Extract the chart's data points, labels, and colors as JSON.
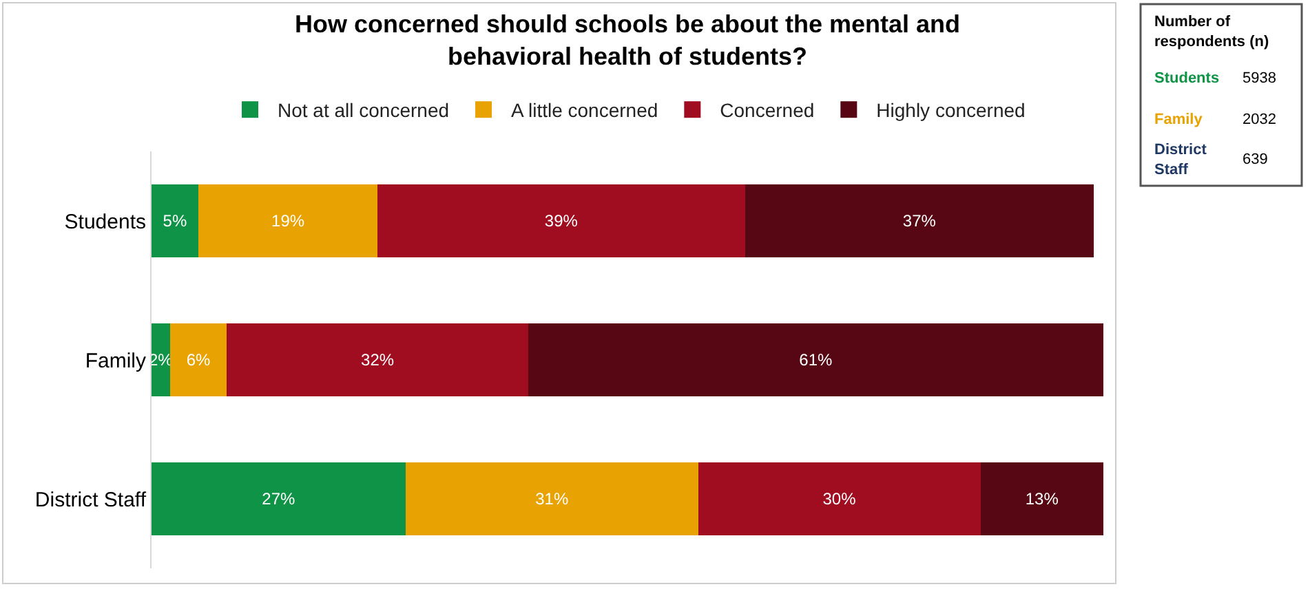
{
  "chart_data": [
    {
      "type": "bar",
      "orientation": "horizontal",
      "stacked": true,
      "title": "How concerned should schools be about the mental and\nbehavioral health of students?",
      "categories": [
        "Students",
        "Family",
        "District Staff"
      ],
      "legend": "top",
      "series": [
        {
          "name": "Not at all concerned",
          "color": "#0f9447",
          "values": [
            5,
            2,
            27
          ],
          "value_labels": [
            "5%",
            "2%",
            "27%"
          ]
        },
        {
          "name": "A little concerned",
          "color": "#e8a202",
          "values": [
            19,
            6,
            31
          ],
          "value_labels": [
            "19%",
            "6%",
            "31%"
          ]
        },
        {
          "name": "Concerned",
          "color": "#a00d21",
          "values": [
            39,
            32,
            30
          ],
          "value_labels": [
            "39%",
            "32%",
            "30%"
          ]
        },
        {
          "name": "Highly concerned",
          "color": "#570713",
          "values": [
            37,
            61,
            13
          ],
          "value_labels": [
            "37%",
            "61%",
            "13%"
          ]
        }
      ]
    },
    {
      "type": "other",
      "title": "Number of\nrespondents (n)",
      "categories": [
        "Students",
        "Family",
        "District\nStaff"
      ],
      "values": [
        5938,
        2032,
        639
      ],
      "data_labels": true
    }
  ]
}
